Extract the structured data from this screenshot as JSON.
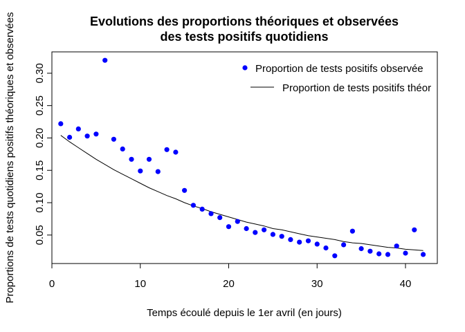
{
  "chart_data": {
    "type": "scatter",
    "title_lines": [
      "Evolutions des proportions théoriques et observées",
      "des tests positifs quotidiens"
    ],
    "xlabel": "Temps écoulé depuis le 1er avril (en jours)",
    "ylabel": "Proportions de tests quotidiens positifs théoriques et observées",
    "xlim": [
      0,
      43.6
    ],
    "ylim": [
      0.006,
      0.333
    ],
    "x_ticks": [
      0,
      10,
      20,
      30,
      40
    ],
    "y_ticks": [
      0.05,
      0.1,
      0.15,
      0.2,
      0.25,
      0.3
    ],
    "y_tick_labels": [
      "0.05",
      "0.10",
      "0.15",
      "0.20",
      "0.25",
      "0.30"
    ],
    "grid": false,
    "legend_position": "top-right",
    "legend_clipped": "Proportion de tests positifs théor",
    "series": [
      {
        "name": "Proportion de tests positifs observée",
        "kind": "points",
        "color": "#0000ff",
        "x": [
          1,
          2,
          3,
          4,
          5,
          6,
          7,
          8,
          9,
          10,
          11,
          12,
          13,
          14,
          15,
          16,
          17,
          18,
          19,
          20,
          21,
          22,
          23,
          24,
          25,
          26,
          27,
          28,
          29,
          30,
          31,
          32,
          33,
          34,
          35,
          36,
          37,
          38,
          39,
          40,
          41,
          42
        ],
        "y": [
          0.222,
          0.201,
          0.214,
          0.203,
          0.206,
          0.32,
          0.198,
          0.183,
          0.167,
          0.149,
          0.167,
          0.148,
          0.182,
          0.178,
          0.119,
          0.096,
          0.09,
          0.083,
          0.077,
          0.063,
          0.071,
          0.06,
          0.054,
          0.058,
          0.051,
          0.048,
          0.043,
          0.039,
          0.041,
          0.036,
          0.03,
          0.018,
          0.035,
          0.056,
          0.029,
          0.025,
          0.021,
          0.02,
          0.033,
          0.022,
          0.058,
          0.02
        ]
      },
      {
        "name": "Proportion de tests positifs théorique",
        "kind": "line",
        "color": "#000000",
        "x": [
          1,
          2,
          3,
          4,
          5,
          6,
          7,
          8,
          9,
          10,
          11,
          12,
          13,
          14,
          15,
          16,
          17,
          18,
          19,
          20,
          21,
          22,
          23,
          24,
          25,
          26,
          27,
          28,
          29,
          30,
          31,
          32,
          33,
          34,
          35,
          36,
          37,
          38,
          39,
          40,
          41,
          42
        ],
        "y": [
          0.204,
          0.194,
          0.185,
          0.176,
          0.167,
          0.159,
          0.151,
          0.144,
          0.137,
          0.13,
          0.123,
          0.117,
          0.111,
          0.106,
          0.1,
          0.095,
          0.091,
          0.086,
          0.082,
          0.078,
          0.074,
          0.07,
          0.067,
          0.064,
          0.06,
          0.058,
          0.055,
          0.052,
          0.049,
          0.047,
          0.045,
          0.043,
          0.04,
          0.038,
          0.037,
          0.035,
          0.033,
          0.031,
          0.03,
          0.028,
          0.027,
          0.026
        ]
      }
    ]
  }
}
